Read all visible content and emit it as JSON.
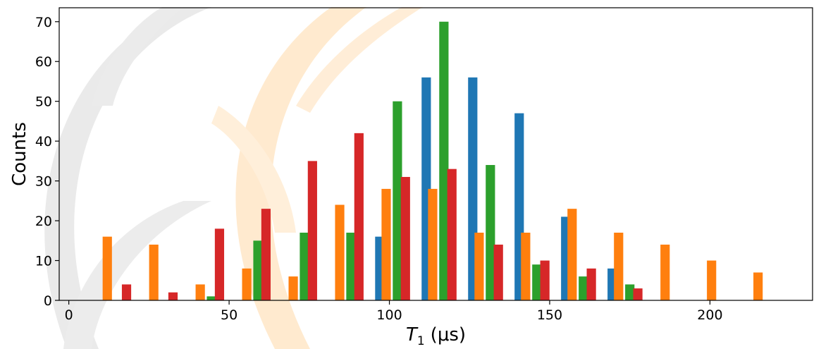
{
  "chart_data": {
    "type": "bar",
    "title": "",
    "xlabel": "T",
    "xlabel_sub": "1",
    "xlabel_unit": "(μs)",
    "ylabel": "Counts",
    "xlim": [
      -3,
      232
    ],
    "ylim": [
      0,
      73.5
    ],
    "xticks": [
      0,
      50,
      100,
      150,
      200
    ],
    "yticks": [
      0,
      10,
      20,
      30,
      40,
      50,
      60,
      70
    ],
    "grid": false,
    "legend": "none",
    "bar_width": 2.9,
    "series": [
      {
        "color": "#1f77b4",
        "points": [
          {
            "x": 97,
            "y": 16
          },
          {
            "x": 111.5,
            "y": 56
          },
          {
            "x": 126,
            "y": 56
          },
          {
            "x": 140.5,
            "y": 47
          },
          {
            "x": 155,
            "y": 21
          },
          {
            "x": 169.5,
            "y": 8
          }
        ]
      },
      {
        "color": "#ff7f0e",
        "points": [
          {
            "x": 12,
            "y": 16
          },
          {
            "x": 26.5,
            "y": 14
          },
          {
            "x": 41,
            "y": 4
          },
          {
            "x": 55.5,
            "y": 8
          },
          {
            "x": 70,
            "y": 6
          },
          {
            "x": 84.5,
            "y": 24
          },
          {
            "x": 99,
            "y": 28
          },
          {
            "x": 113.5,
            "y": 28
          },
          {
            "x": 128,
            "y": 17
          },
          {
            "x": 142.5,
            "y": 17
          },
          {
            "x": 157,
            "y": 23
          },
          {
            "x": 171.5,
            "y": 17
          },
          {
            "x": 186,
            "y": 14
          },
          {
            "x": 200.5,
            "y": 10
          },
          {
            "x": 215,
            "y": 7
          }
        ]
      },
      {
        "color": "#2ca02c",
        "points": [
          {
            "x": 44.5,
            "y": 1
          },
          {
            "x": 59,
            "y": 15
          },
          {
            "x": 73.5,
            "y": 17
          },
          {
            "x": 88,
            "y": 17
          },
          {
            "x": 102.5,
            "y": 50
          },
          {
            "x": 117,
            "y": 70
          },
          {
            "x": 131.5,
            "y": 34
          },
          {
            "x": 146,
            "y": 9
          },
          {
            "x": 160.5,
            "y": 6
          },
          {
            "x": 175,
            "y": 4
          }
        ]
      },
      {
        "color": "#d62728",
        "points": [
          {
            "x": 18,
            "y": 4
          },
          {
            "x": 32.5,
            "y": 2
          },
          {
            "x": 47,
            "y": 18
          },
          {
            "x": 61.5,
            "y": 23
          },
          {
            "x": 76,
            "y": 35
          },
          {
            "x": 90.5,
            "y": 42
          },
          {
            "x": 105,
            "y": 31
          },
          {
            "x": 119.5,
            "y": 33
          },
          {
            "x": 134,
            "y": 14
          },
          {
            "x": 148.5,
            "y": 10
          },
          {
            "x": 163,
            "y": 8
          },
          {
            "x": 177.5,
            "y": 3
          }
        ]
      }
    ]
  }
}
